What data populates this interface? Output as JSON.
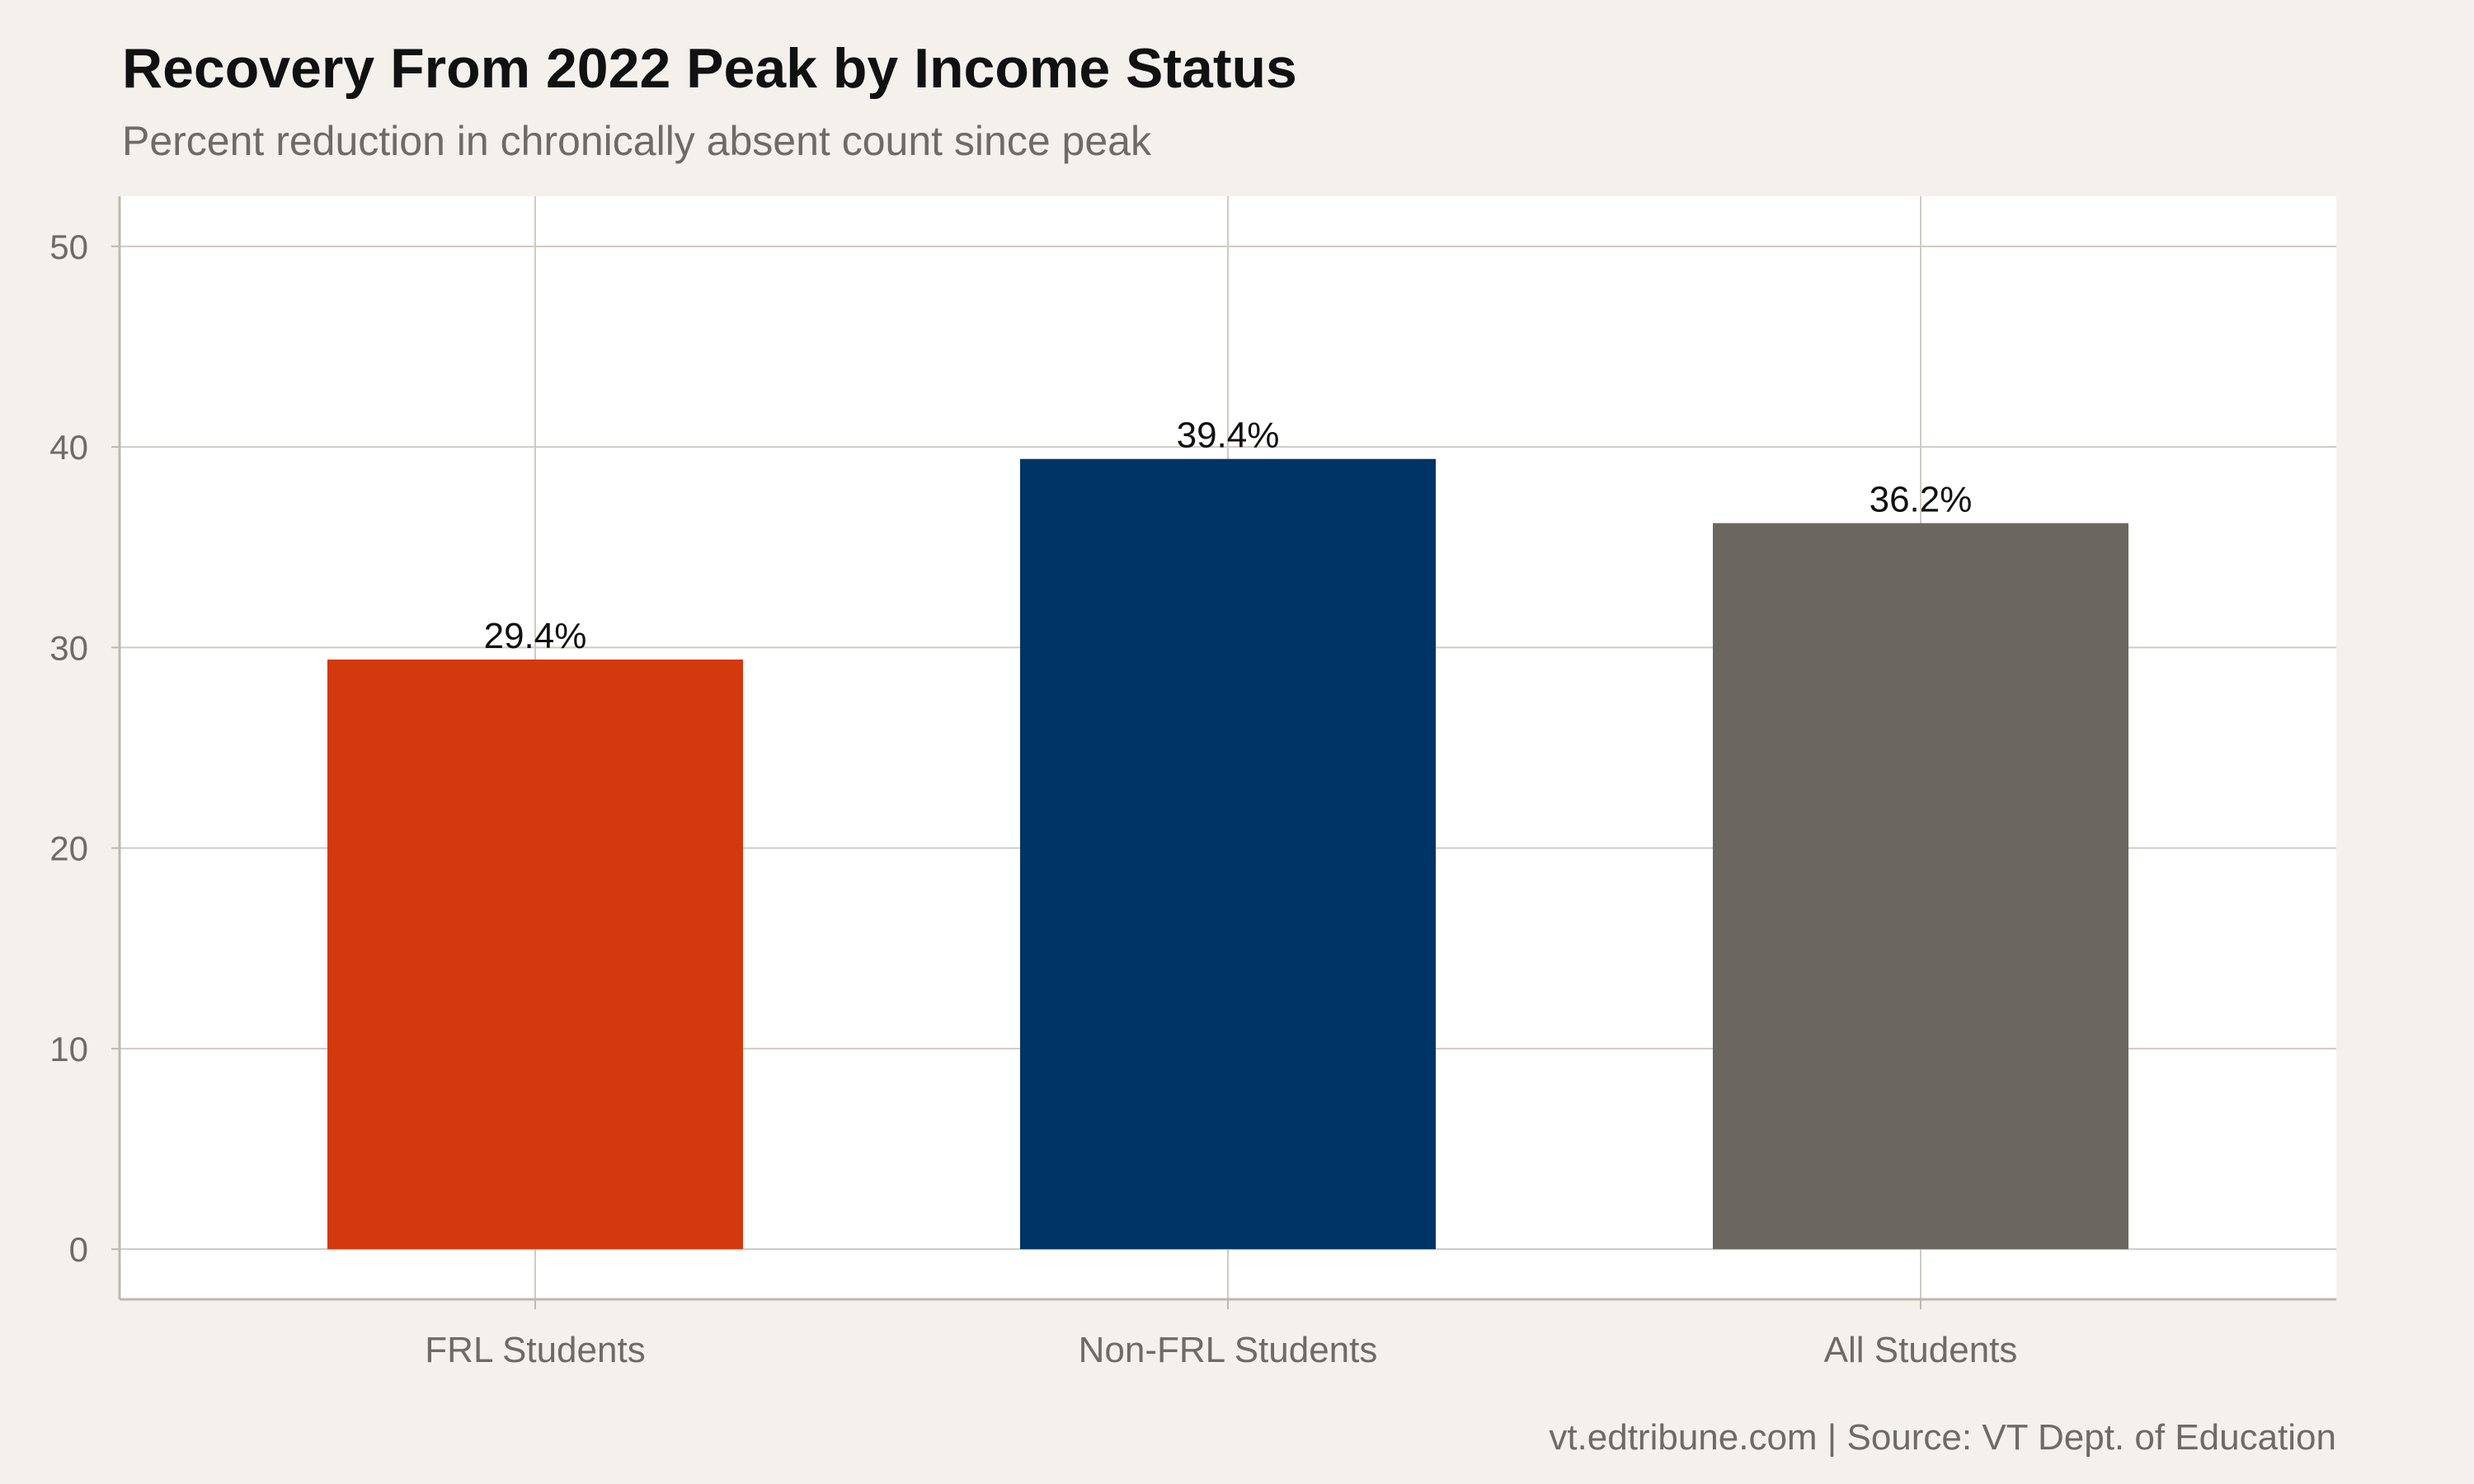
{
  "chart_data": {
    "type": "bar",
    "title": "Recovery From 2022 Peak by Income Status",
    "subtitle": "Percent reduction in chronically absent count since peak",
    "caption": "vt.edtribune.com | Source: VT Dept. of Education",
    "categories": [
      "FRL Students",
      "Non-FRL Students",
      "All Students"
    ],
    "values": [
      29.4,
      39.4,
      36.2
    ],
    "value_labels": [
      "29.4%",
      "39.4%",
      "36.2%"
    ],
    "colors": [
      "#d4380d",
      "#003366",
      "#6b6660"
    ],
    "xlabel": "",
    "ylabel": "",
    "ylim": [
      -2.5,
      52.5
    ],
    "yticks": [
      0,
      10,
      20,
      30,
      40,
      50
    ],
    "ytick_labels": [
      "0",
      "10",
      "20",
      "30",
      "40",
      "50"
    ],
    "grid": true,
    "legend": "none"
  }
}
